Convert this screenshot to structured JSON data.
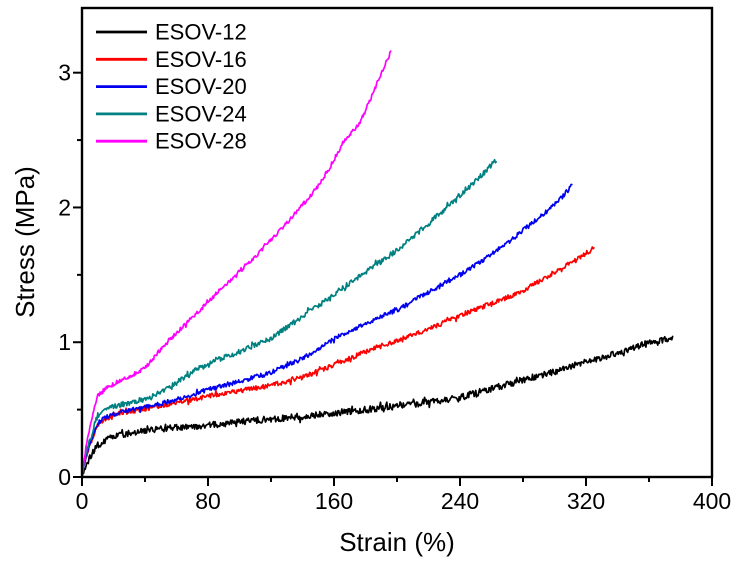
{
  "figure": {
    "background_color": "#ffffff",
    "frame_color": "#000000"
  },
  "chart_data": {
    "type": "line",
    "title": "",
    "xlabel": "Strain (%)",
    "ylabel": "Stress (MPa)",
    "xlim": [
      0,
      400
    ],
    "ylim": [
      0,
      3.48
    ],
    "x_major_ticks": [
      0,
      80,
      160,
      240,
      320,
      400
    ],
    "x_minor_ticks": [
      40,
      120,
      200,
      280,
      360
    ],
    "y_major_ticks": [
      0,
      1,
      2,
      3
    ],
    "y_minor_ticks": [
      0.5,
      1.5,
      2.5
    ],
    "grid": false,
    "legend_position": "top-left",
    "line_style": "noisy",
    "series": [
      {
        "name": "ESOV-12",
        "color": "#000000",
        "noise_mpa": 0.024,
        "points": [
          [
            0,
            0
          ],
          [
            1,
            0.04
          ],
          [
            2,
            0.07
          ],
          [
            3,
            0.1
          ],
          [
            5,
            0.14
          ],
          [
            8,
            0.2
          ],
          [
            10,
            0.235
          ],
          [
            15,
            0.27
          ],
          [
            20,
            0.297
          ],
          [
            30,
            0.325
          ],
          [
            40,
            0.345
          ],
          [
            50,
            0.357
          ],
          [
            60,
            0.365
          ],
          [
            80,
            0.385
          ],
          [
            100,
            0.41
          ],
          [
            120,
            0.43
          ],
          [
            140,
            0.45
          ],
          [
            160,
            0.475
          ],
          [
            180,
            0.5
          ],
          [
            200,
            0.525
          ],
          [
            220,
            0.555
          ],
          [
            240,
            0.59
          ],
          [
            260,
            0.655
          ],
          [
            280,
            0.72
          ],
          [
            300,
            0.78
          ],
          [
            315,
            0.84
          ],
          [
            330,
            0.88
          ],
          [
            350,
            0.96
          ],
          [
            365,
            1.01
          ],
          [
            375,
            1.03
          ]
        ]
      },
      {
        "name": "ESOV-16",
        "color": "#ff0000",
        "noise_mpa": 0.017,
        "points": [
          [
            0,
            0
          ],
          [
            1,
            0.07
          ],
          [
            2,
            0.12
          ],
          [
            3,
            0.16
          ],
          [
            5,
            0.23
          ],
          [
            8,
            0.33
          ],
          [
            10,
            0.39
          ],
          [
            15,
            0.43
          ],
          [
            20,
            0.46
          ],
          [
            30,
            0.485
          ],
          [
            40,
            0.505
          ],
          [
            50,
            0.53
          ],
          [
            60,
            0.55
          ],
          [
            70,
            0.575
          ],
          [
            80,
            0.6
          ],
          [
            100,
            0.64
          ],
          [
            120,
            0.68
          ],
          [
            140,
            0.74
          ],
          [
            164,
            0.85
          ],
          [
            180,
            0.93
          ],
          [
            202,
            1.02
          ],
          [
            221,
            1.1
          ],
          [
            240,
            1.2
          ],
          [
            265,
            1.31
          ],
          [
            278,
            1.37
          ],
          [
            290,
            1.45
          ],
          [
            303,
            1.54
          ],
          [
            315,
            1.62
          ],
          [
            325,
            1.7
          ]
        ]
      },
      {
        "name": "ESOV-20",
        "color": "#0000ee",
        "noise_mpa": 0.017,
        "points": [
          [
            0,
            0
          ],
          [
            1,
            0.07
          ],
          [
            2,
            0.12
          ],
          [
            3,
            0.17
          ],
          [
            5,
            0.24
          ],
          [
            8,
            0.34
          ],
          [
            10,
            0.4
          ],
          [
            15,
            0.44
          ],
          [
            20,
            0.465
          ],
          [
            30,
            0.495
          ],
          [
            40,
            0.515
          ],
          [
            50,
            0.545
          ],
          [
            60,
            0.575
          ],
          [
            70,
            0.61
          ],
          [
            80,
            0.65
          ],
          [
            100,
            0.71
          ],
          [
            119,
            0.77
          ],
          [
            140,
            0.88
          ],
          [
            164,
            1.05
          ],
          [
            180,
            1.14
          ],
          [
            202,
            1.25
          ],
          [
            221,
            1.38
          ],
          [
            240,
            1.5
          ],
          [
            260,
            1.65
          ],
          [
            278,
            1.81
          ],
          [
            295,
            1.97
          ],
          [
            305,
            2.08
          ],
          [
            311,
            2.16
          ]
        ]
      },
      {
        "name": "ESOV-24",
        "color": "#008080",
        "noise_mpa": 0.019,
        "points": [
          [
            0,
            0
          ],
          [
            1,
            0.08
          ],
          [
            2,
            0.14
          ],
          [
            3,
            0.19
          ],
          [
            5,
            0.27
          ],
          [
            8,
            0.39
          ],
          [
            10,
            0.46
          ],
          [
            15,
            0.49
          ],
          [
            20,
            0.525
          ],
          [
            30,
            0.55
          ],
          [
            40,
            0.58
          ],
          [
            50,
            0.63
          ],
          [
            60,
            0.7
          ],
          [
            70,
            0.78
          ],
          [
            84,
            0.86
          ],
          [
            100,
            0.93
          ],
          [
            119,
            1.02
          ],
          [
            132,
            1.13
          ],
          [
            150,
            1.27
          ],
          [
            170,
            1.44
          ],
          [
            185,
            1.56
          ],
          [
            202,
            1.7
          ],
          [
            221,
            1.89
          ],
          [
            240,
            2.09
          ],
          [
            252,
            2.22
          ],
          [
            263,
            2.35
          ]
        ]
      },
      {
        "name": "ESOV-28",
        "color": "#ff00ff",
        "noise_mpa": 0.015,
        "points": [
          [
            0,
            0
          ],
          [
            1,
            0.1
          ],
          [
            2,
            0.18
          ],
          [
            3,
            0.25
          ],
          [
            5,
            0.36
          ],
          [
            8,
            0.52
          ],
          [
            10,
            0.6
          ],
          [
            15,
            0.655
          ],
          [
            20,
            0.69
          ],
          [
            30,
            0.745
          ],
          [
            40,
            0.81
          ],
          [
            50,
            0.95
          ],
          [
            60,
            1.07
          ],
          [
            75,
            1.24
          ],
          [
            94,
            1.46
          ],
          [
            113,
            1.67
          ],
          [
            132,
            1.91
          ],
          [
            151,
            2.17
          ],
          [
            167,
            2.5
          ],
          [
            176,
            2.62
          ],
          [
            183,
            2.8
          ],
          [
            190,
            3.0
          ],
          [
            196,
            3.15
          ]
        ]
      }
    ]
  },
  "legend": {
    "labels": [
      "ESOV-12",
      "ESOV-16",
      "ESOV-20",
      "ESOV-24",
      "ESOV-28"
    ]
  }
}
